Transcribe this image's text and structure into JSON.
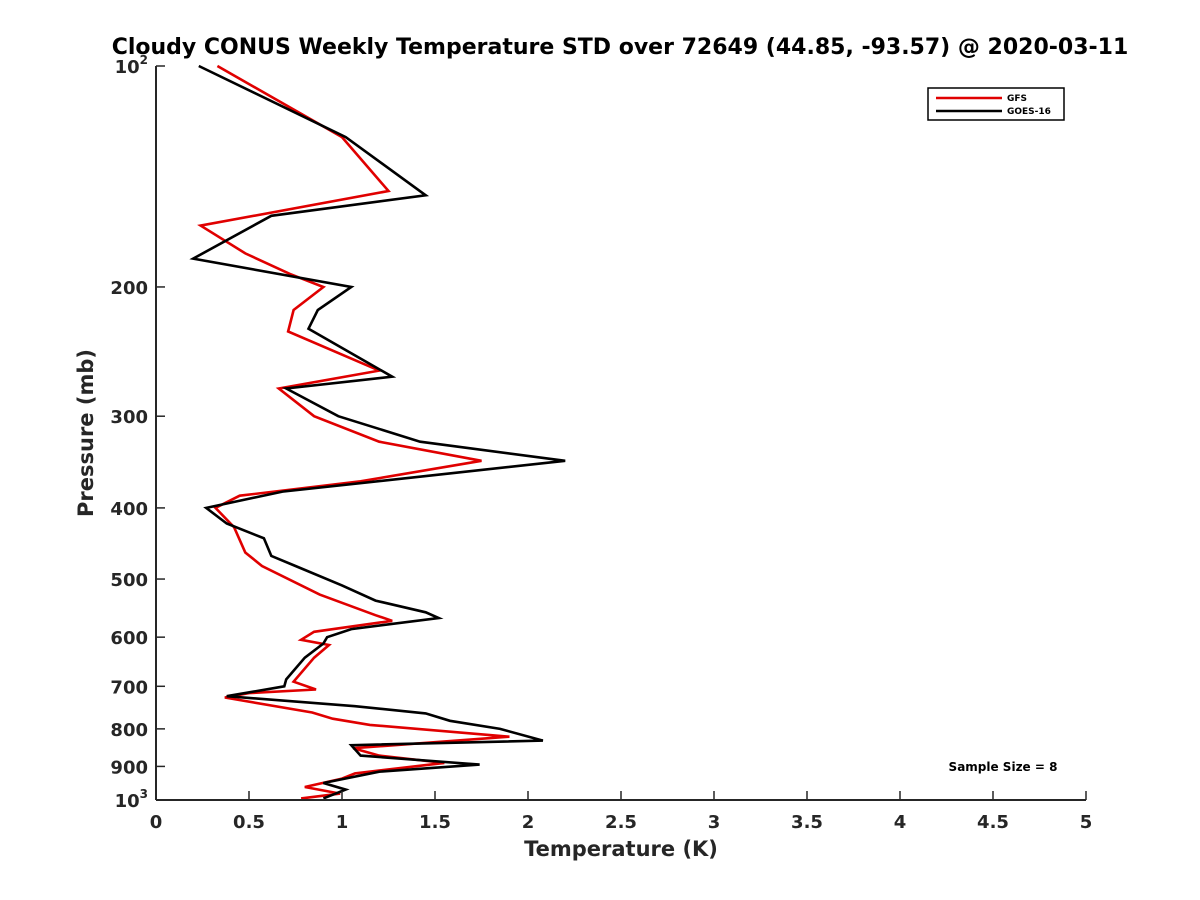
{
  "chart_data": {
    "type": "line",
    "title": "Cloudy CONUS Weekly Temperature STD over 72649 (44.85, -93.57) @ 2020-03-11",
    "xlabel": "Temperature (K)",
    "ylabel": "Pressure (mb)",
    "xlim": [
      0,
      5
    ],
    "ylim": [
      100,
      1000
    ],
    "yscale": "log",
    "y_reversed": true,
    "x_ticks": [
      0,
      0.5,
      1,
      1.5,
      2,
      2.5,
      3,
      3.5,
      4,
      4.5,
      5
    ],
    "x_tick_labels": [
      "0",
      "0.5",
      "1",
      "1.5",
      "2",
      "2.5",
      "3",
      "3.5",
      "4",
      "4.5",
      "5"
    ],
    "y_ticks": [
      100,
      200,
      300,
      400,
      500,
      600,
      700,
      800,
      900,
      1000
    ],
    "y_tick_labels": [
      {
        "base": "10",
        "sup": "2"
      },
      {
        "base": "200",
        "sup": ""
      },
      {
        "base": "300",
        "sup": ""
      },
      {
        "base": "400",
        "sup": ""
      },
      {
        "base": "500",
        "sup": ""
      },
      {
        "base": "600",
        "sup": ""
      },
      {
        "base": "700",
        "sup": ""
      },
      {
        "base": "800",
        "sup": ""
      },
      {
        "base": "900",
        "sup": ""
      },
      {
        "base": "10",
        "sup": "3"
      }
    ],
    "legend_position": "top-right",
    "annotation": "Sample Size = 8",
    "series": [
      {
        "name": "GFS",
        "color": "#e00000",
        "points": [
          [
            0.33,
            100
          ],
          [
            1.0,
            125
          ],
          [
            1.25,
            148
          ],
          [
            0.24,
            165
          ],
          [
            0.48,
            180
          ],
          [
            0.72,
            192
          ],
          [
            0.9,
            200
          ],
          [
            0.74,
            215
          ],
          [
            0.71,
            230
          ],
          [
            1.2,
            260
          ],
          [
            0.66,
            275
          ],
          [
            0.85,
            300
          ],
          [
            1.2,
            325
          ],
          [
            1.75,
            345
          ],
          [
            1.1,
            368
          ],
          [
            0.45,
            385
          ],
          [
            0.32,
            400
          ],
          [
            0.42,
            425
          ],
          [
            0.48,
            460
          ],
          [
            0.57,
            480
          ],
          [
            0.88,
            525
          ],
          [
            1.18,
            560
          ],
          [
            1.27,
            570
          ],
          [
            0.85,
            590
          ],
          [
            0.78,
            605
          ],
          [
            0.93,
            615
          ],
          [
            0.85,
            640
          ],
          [
            0.74,
            690
          ],
          [
            0.86,
            707
          ],
          [
            0.5,
            715
          ],
          [
            0.37,
            725
          ],
          [
            0.84,
            760
          ],
          [
            0.95,
            775
          ],
          [
            1.15,
            790
          ],
          [
            1.9,
            820
          ],
          [
            1.06,
            850
          ],
          [
            1.2,
            870
          ],
          [
            1.55,
            890
          ],
          [
            1.07,
            920
          ],
          [
            1.0,
            935
          ],
          [
            0.8,
            960
          ],
          [
            0.99,
            980
          ],
          [
            0.78,
            995
          ]
        ]
      },
      {
        "name": "GOES-16",
        "color": "#000000",
        "points": [
          [
            0.23,
            100
          ],
          [
            1.02,
            125
          ],
          [
            1.45,
            150
          ],
          [
            0.62,
            160
          ],
          [
            0.2,
            183
          ],
          [
            1.05,
            200
          ],
          [
            0.87,
            215
          ],
          [
            0.82,
            228
          ],
          [
            1.27,
            265
          ],
          [
            0.7,
            275
          ],
          [
            0.98,
            300
          ],
          [
            1.42,
            325
          ],
          [
            2.2,
            345
          ],
          [
            1.45,
            362
          ],
          [
            0.68,
            380
          ],
          [
            0.27,
            400
          ],
          [
            0.38,
            420
          ],
          [
            0.58,
            440
          ],
          [
            0.62,
            465
          ],
          [
            0.75,
            480
          ],
          [
            1.0,
            510
          ],
          [
            1.18,
            535
          ],
          [
            1.45,
            555
          ],
          [
            1.52,
            565
          ],
          [
            1.05,
            585
          ],
          [
            0.92,
            600
          ],
          [
            0.9,
            612
          ],
          [
            0.8,
            640
          ],
          [
            0.7,
            685
          ],
          [
            0.69,
            700
          ],
          [
            0.38,
            722
          ],
          [
            1.07,
            745
          ],
          [
            1.45,
            762
          ],
          [
            1.58,
            780
          ],
          [
            1.85,
            800
          ],
          [
            2.08,
            830
          ],
          [
            1.05,
            842
          ],
          [
            1.1,
            870
          ],
          [
            1.74,
            895
          ],
          [
            1.2,
            915
          ],
          [
            0.9,
            948
          ],
          [
            1.02,
            968
          ],
          [
            0.9,
            995
          ]
        ]
      }
    ]
  }
}
